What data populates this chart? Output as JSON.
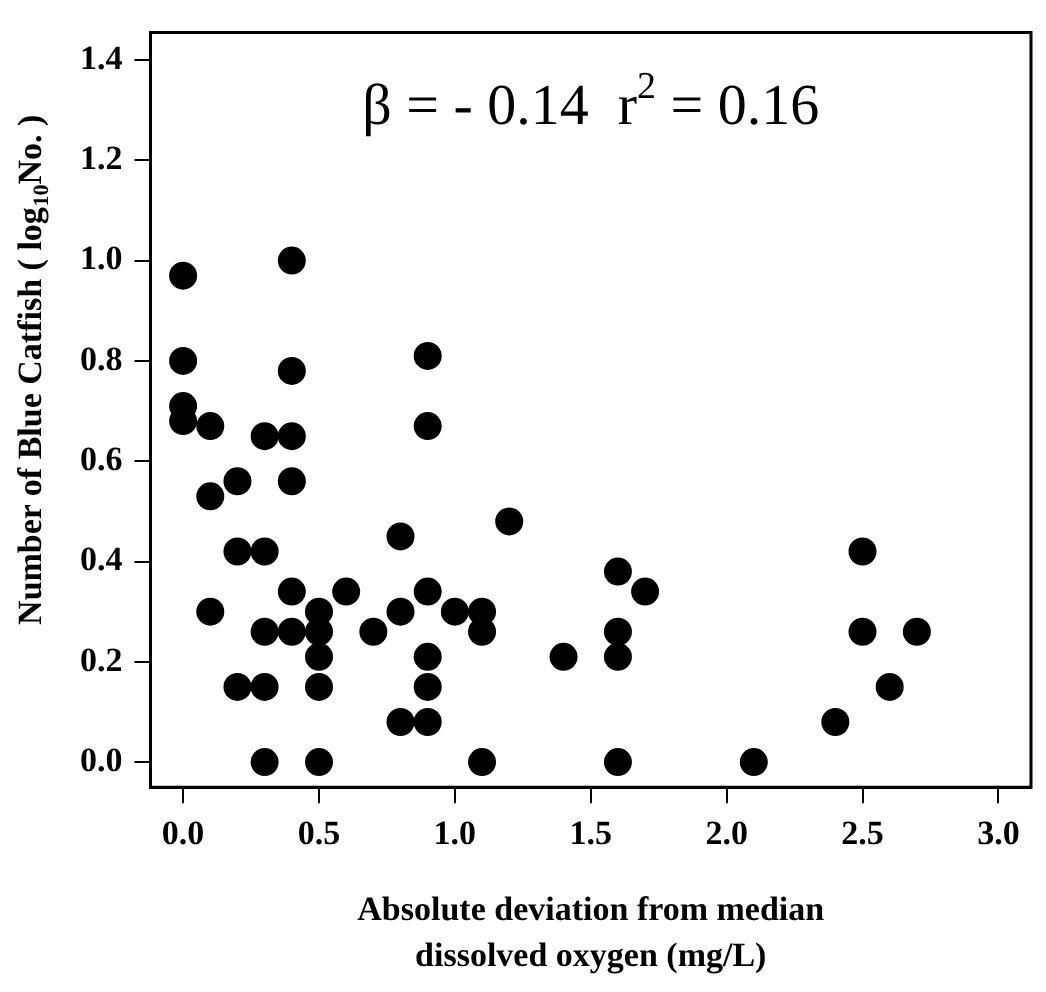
{
  "chart_data": {
    "type": "scatter",
    "xlabel": "Absolute deviation from median\ndissolved oxygen (mg/L)",
    "ylabel": "Number of Blue Catfish ( log$_{10}$No. )",
    "annotations": [
      "β = - 0.14  r$^{2}$ = 0.16"
    ],
    "x": [
      0,
      0,
      0,
      0,
      0.1,
      0.1,
      0.1,
      0.2,
      0.2,
      0.2,
      0.3,
      0.3,
      0.3,
      0.3,
      0.3,
      0.4,
      0.4,
      0.4,
      0.4,
      0.4,
      0.4,
      0.5,
      0.5,
      0.5,
      0.5,
      0.5,
      0.6,
      0.7,
      0.8,
      0.8,
      0.8,
      0.9,
      0.9,
      0.9,
      0.9,
      0.9,
      0.9,
      1.0,
      1.1,
      1.1,
      1.1,
      1.2,
      1.4,
      1.6,
      1.6,
      1.6,
      1.6,
      1.7,
      2.1,
      2.4,
      2.5,
      2.5,
      2.6,
      2.7
    ],
    "values": [
      0.97,
      0.8,
      0.71,
      0.68,
      0.67,
      0.53,
      0.3,
      0.56,
      0.42,
      0.15,
      0.65,
      0.42,
      0.26,
      0.15,
      0,
      1.0,
      0.78,
      0.65,
      0.56,
      0.34,
      0.26,
      0.3,
      0.26,
      0.21,
      0.15,
      0,
      0.34,
      0.26,
      0.45,
      0.3,
      0.08,
      0.81,
      0.67,
      0.34,
      0.21,
      0.15,
      0.08,
      0.3,
      0.3,
      0.26,
      0,
      0.48,
      0.21,
      0.38,
      0.26,
      0.21,
      0,
      0.34,
      0,
      0.08,
      0.42,
      0.26,
      0.15,
      0.26
    ],
    "color": "#000000",
    "marker": "circle",
    "grid": false,
    "legend": false,
    "xlim": [
      -0.12,
      3.12
    ],
    "xticks": [
      {
        "value": 0,
        "label": "0.0"
      },
      {
        "value": 0.5,
        "label": "0.5"
      },
      {
        "value": 1,
        "label": "1.0"
      },
      {
        "value": 1.5,
        "label": "1.5"
      },
      {
        "value": 2,
        "label": "2.0"
      },
      {
        "value": 2.5,
        "label": "2.5"
      },
      {
        "value": 3,
        "label": "3.0"
      }
    ],
    "ylim": [
      -0.05,
      1.455
    ],
    "yticks": [
      {
        "value": 0,
        "label": "0.0"
      },
      0.2,
      0.4,
      0.6,
      0.8,
      {
        "value": 1,
        "label": "1.0"
      },
      1.2,
      1.4
    ]
  }
}
